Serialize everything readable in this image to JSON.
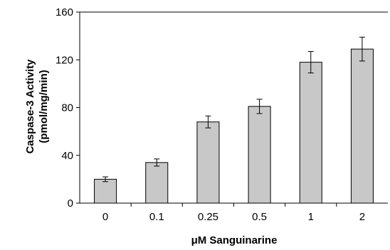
{
  "chart_data": {
    "type": "bar",
    "title": "",
    "xlabel": "μM Sanguinarine",
    "ylabel_line1": "Caspase-3 Activity",
    "ylabel_line2": "(pmol/mg/min)",
    "categories": [
      "0",
      "0.1",
      "0.25",
      "0.5",
      "1",
      "2"
    ],
    "values": [
      20,
      34,
      68,
      81,
      118,
      129
    ],
    "errors": [
      2,
      3,
      5,
      6,
      9,
      10
    ],
    "ylim": [
      0,
      160
    ],
    "yticks": [
      0,
      40,
      80,
      120,
      160
    ],
    "grid": false,
    "legend": "none",
    "colors": {
      "bar_fill": "#c8c8c8",
      "bar_stroke": "#000000",
      "axis": "#000000"
    }
  }
}
